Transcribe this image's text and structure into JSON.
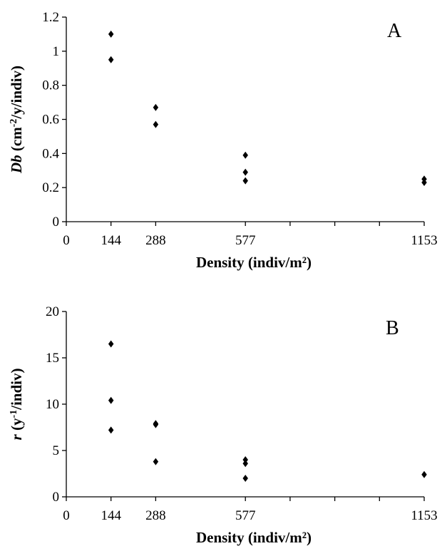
{
  "chart_data": [
    {
      "type": "scatter",
      "panel_label": "A",
      "xlabel": "Density (indiv/m²)",
      "ylabel_main": "Db",
      "ylabel_rest_pre": " (cm",
      "ylabel_sup": "-2",
      "ylabel_post": "/y/indiv)",
      "xlim": [
        0,
        1153
      ],
      "ylim": [
        0,
        1.2
      ],
      "x_ticks": [
        0,
        144,
        288,
        577,
        1153
      ],
      "x_tick_labels": [
        "0",
        "144",
        "288",
        "577",
        "1153"
      ],
      "y_ticks": [
        0,
        0.2,
        0.4,
        0.6,
        0.8,
        1,
        1.2
      ],
      "y_tick_labels": [
        "0",
        "0.2",
        "0.4",
        "0.6",
        "0.8",
        "1",
        "1.2"
      ],
      "grid": false,
      "series": [
        {
          "points": [
            {
              "x": 144,
              "y": 1.1
            },
            {
              "x": 144,
              "y": 0.95
            },
            {
              "x": 288,
              "y": 0.67
            },
            {
              "x": 288,
              "y": 0.57
            },
            {
              "x": 577,
              "y": 0.39
            },
            {
              "x": 577,
              "y": 0.29
            },
            {
              "x": 577,
              "y": 0.24
            },
            {
              "x": 1153,
              "y": 0.25
            },
            {
              "x": 1153,
              "y": 0.23
            }
          ]
        }
      ]
    },
    {
      "type": "scatter",
      "panel_label": "B",
      "xlabel": "Density (indiv/m²)",
      "ylabel_main": "r",
      "ylabel_rest_pre": " (y",
      "ylabel_sup": "-1",
      "ylabel_post": "/indiv)",
      "xlim": [
        0,
        1153
      ],
      "ylim": [
        0,
        20
      ],
      "x_ticks": [
        0,
        144,
        288,
        577,
        1153
      ],
      "x_tick_labels": [
        "0",
        "144",
        "288",
        "577",
        "1153"
      ],
      "y_ticks": [
        0,
        5,
        10,
        15,
        20
      ],
      "y_tick_labels": [
        "0",
        "5",
        "10",
        "15",
        "20"
      ],
      "grid": false,
      "series": [
        {
          "points": [
            {
              "x": 144,
              "y": 16.5
            },
            {
              "x": 144,
              "y": 10.4
            },
            {
              "x": 144,
              "y": 7.2
            },
            {
              "x": 288,
              "y": 7.9
            },
            {
              "x": 288,
              "y": 7.8
            },
            {
              "x": 288,
              "y": 3.8
            },
            {
              "x": 577,
              "y": 4.0
            },
            {
              "x": 577,
              "y": 3.6
            },
            {
              "x": 577,
              "y": 2.0
            },
            {
              "x": 1153,
              "y": 2.4
            }
          ]
        }
      ]
    }
  ]
}
